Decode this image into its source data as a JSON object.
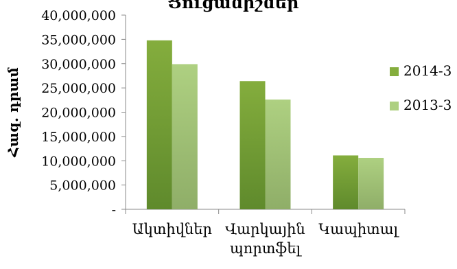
{
  "chart_data": {
    "type": "bar",
    "title": "Ցուցանիշներ",
    "xlabel": "",
    "ylabel": "Հազ. դրամ",
    "categories": [
      [
        "Ակտիվներ"
      ],
      [
        "Վարկային",
        "պորտֆել"
      ],
      [
        "Կապիտալ"
      ]
    ],
    "series": [
      {
        "name": "2014-3",
        "values": [
          34800000,
          26400000,
          11100000
        ],
        "color": "#84ad3d"
      },
      {
        "name": "2013-3",
        "values": [
          29900000,
          22600000,
          10600000
        ],
        "color": "#aed081"
      }
    ],
    "ylim": [
      0,
      40000000
    ],
    "yticks": [
      {
        "value": 0,
        "label": "-"
      },
      {
        "value": 5000000,
        "label": "5,000,000"
      },
      {
        "value": 10000000,
        "label": "10,000,000"
      },
      {
        "value": 15000000,
        "label": "15,000,000"
      },
      {
        "value": 20000000,
        "label": "20,000,000"
      },
      {
        "value": 25000000,
        "label": "25,000,000"
      },
      {
        "value": 30000000,
        "label": "30,000,000"
      },
      {
        "value": 35000000,
        "label": "35,000,000"
      },
      {
        "value": 40000000,
        "label": "40,000,000"
      }
    ],
    "grid": false,
    "legend": "right"
  }
}
